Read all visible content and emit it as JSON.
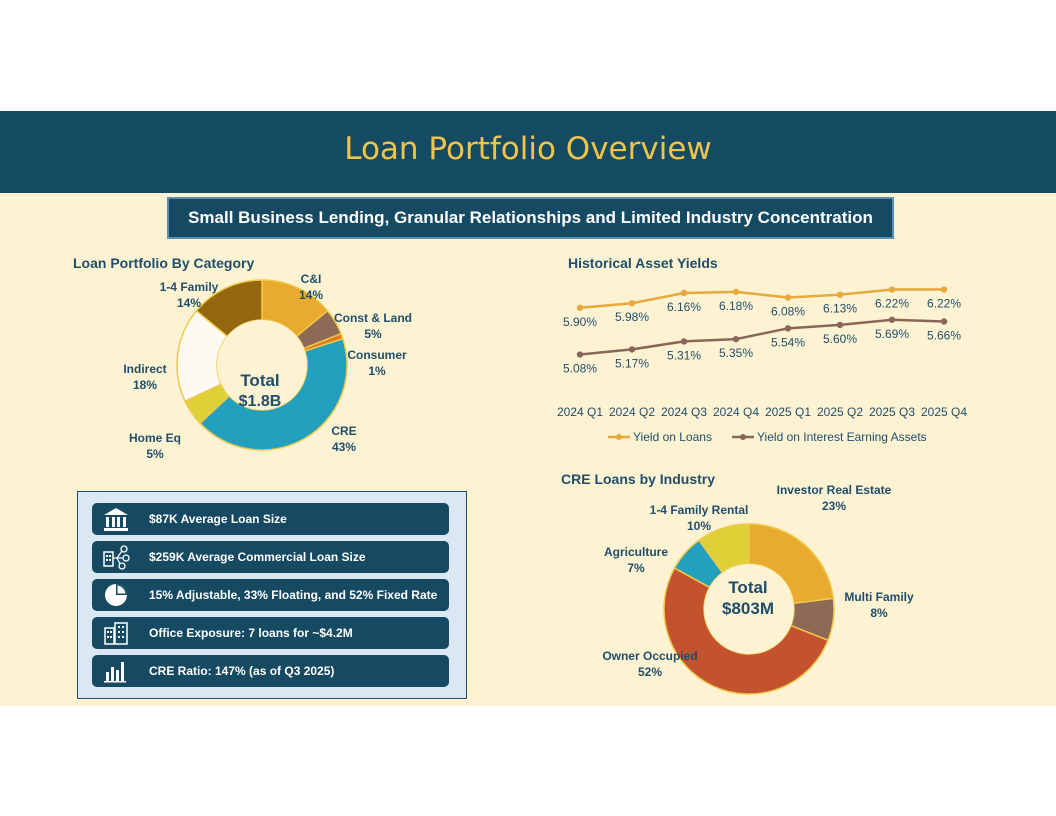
{
  "page": {
    "title": "Loan Portfolio Overview",
    "subtitle": "Small Business Lending, Granular Relationships and Limited Industry Concentration"
  },
  "loan_portfolio": {
    "heading": "Loan  Portfolio By Category",
    "center_label": "Total",
    "center_value": "$1.8B",
    "labels": [
      {
        "name": "C&I",
        "pct": "14%"
      },
      {
        "name": "Const & Land",
        "pct": "5%"
      },
      {
        "name": "Consumer",
        "pct": "1%"
      },
      {
        "name": "CRE",
        "pct": "43%"
      },
      {
        "name": "Home Eq",
        "pct": "5%"
      },
      {
        "name": "Indirect",
        "pct": "18%"
      },
      {
        "name": "1-4 Family",
        "pct": "14%"
      }
    ]
  },
  "yields": {
    "heading": "Historical Asset Yields",
    "legend": [
      "Yield on Loans",
      "Yield on Interest Earning Assets"
    ]
  },
  "cre": {
    "heading": "CRE Loans by Industry",
    "center_label": "Total",
    "center_value": "$803M",
    "labels": [
      {
        "name": "Investor Real Estate",
        "pct": "23%"
      },
      {
        "name": "Multi Family",
        "pct": "8%"
      },
      {
        "name": "Owner Occupied",
        "pct": "52%"
      },
      {
        "name": "Agriculture",
        "pct": "7%"
      },
      {
        "name": "1-4 Family Rental",
        "pct": "10%"
      }
    ]
  },
  "stats": [
    {
      "icon": "bank-icon",
      "text": "$87K Average Loan Size"
    },
    {
      "icon": "network-icon",
      "text": "$259K Average Commercial Loan Size"
    },
    {
      "icon": "pie-chart-icon",
      "text": "15% Adjustable, 33% Floating, and 52% Fixed Rate"
    },
    {
      "icon": "office-building-icon",
      "text": "Office Exposure: 7 loans for ~$4.2M"
    },
    {
      "icon": "bar-chart-icon",
      "text": "CRE Ratio: 147% (as of Q3 2025)"
    }
  ],
  "chart_data": [
    {
      "type": "pie",
      "title": "Loan  Portfolio By Category",
      "categories": [
        "C&I",
        "Const & Land",
        "Consumer",
        "CRE",
        "Home Eq",
        "Indirect",
        "1-4 Family"
      ],
      "values": [
        14,
        5,
        1,
        43,
        5,
        18,
        14
      ],
      "colors": [
        "#e9ab2d",
        "#8d6a56",
        "#e07a1f",
        "#24a0bf",
        "#dfd037",
        "#fdfaf4",
        "#94660e"
      ],
      "center_text": [
        "Total",
        "$1.8B"
      ]
    },
    {
      "type": "line",
      "title": "Historical Asset Yields",
      "categories": [
        "2024 Q1",
        "2024 Q2",
        "2024 Q3",
        "2024 Q4",
        "2025 Q1",
        "2025 Q2",
        "2025 Q3",
        "2025 Q4"
      ],
      "series": [
        {
          "name": "Yield on Loans",
          "color": "#e8a83a",
          "values": [
            5.9,
            5.98,
            6.16,
            6.18,
            6.08,
            6.13,
            6.22,
            6.22
          ],
          "labels": [
            "5.90%",
            "5.98%",
            "6.16%",
            "6.18%",
            "6.08%",
            "6.13%",
            "6.22%",
            "6.22%"
          ]
        },
        {
          "name": "Yield on Interest Earning Assets",
          "color": "#8a6658",
          "values": [
            5.08,
            5.17,
            5.31,
            5.35,
            5.54,
            5.6,
            5.69,
            5.66
          ],
          "labels": [
            "5.08%",
            "5.17%",
            "5.31%",
            "5.35%",
            "5.54%",
            "5.60%",
            "5.69%",
            "5.66%"
          ]
        }
      ],
      "legend_position": "bottom"
    },
    {
      "type": "pie",
      "title": "CRE Loans by Industry",
      "categories": [
        "Investor Real Estate",
        "Multi Family",
        "Owner Occupied",
        "Agriculture",
        "1-4 Family Rental"
      ],
      "values": [
        23,
        8,
        52,
        7,
        10
      ],
      "colors": [
        "#e9ab2d",
        "#8d6a56",
        "#c4522e",
        "#24a0bf",
        "#dfd037"
      ],
      "center_text": [
        "Total",
        "$803M"
      ]
    }
  ]
}
